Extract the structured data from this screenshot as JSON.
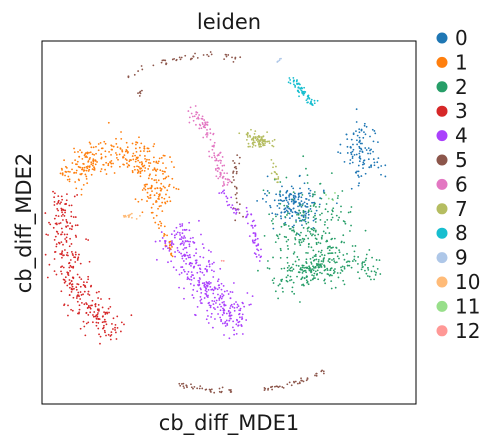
{
  "chart_data": {
    "type": "scatter",
    "title": "leiden",
    "xlabel": "cb_diff_MDE1",
    "ylabel": "cb_diff_MDE2",
    "xticks": [],
    "yticks": [],
    "grid": false,
    "legend_position": "right",
    "series": [
      {
        "name": "0",
        "color": "#1f77b4",
        "clusters": [
          {
            "cx": 0.4,
            "cy": 0.12,
            "sx": 0.08,
            "sy": 0.07,
            "n": 170,
            "angle": -0.2
          },
          {
            "cx": 0.82,
            "cy": 0.45,
            "sx": 0.06,
            "sy": 0.1,
            "n": 110,
            "angle": 0.1
          }
        ]
      },
      {
        "name": "1",
        "color": "#ff7f0e",
        "path": [
          [
            -1.0,
            0.28
          ],
          [
            -0.85,
            0.4
          ],
          [
            -0.62,
            0.46
          ],
          [
            -0.5,
            0.4
          ],
          [
            -0.47,
            0.26
          ],
          [
            -0.42,
            0.1
          ]
        ],
        "width": 0.055,
        "n": 360
      },
      {
        "name": "2",
        "color": "#279e68",
        "clusters": [
          {
            "cx": 0.55,
            "cy": -0.3,
            "sx": 0.13,
            "sy": 0.05,
            "n": 200,
            "angle": 0.25
          },
          {
            "cx": 0.5,
            "cy": -0.05,
            "sx": 0.13,
            "sy": 0.15,
            "n": 240,
            "angle": 0.0
          }
        ]
      },
      {
        "name": "3",
        "color": "#d62728",
        "path": [
          [
            -1.02,
            0.18
          ],
          [
            -1.03,
            -0.02
          ],
          [
            -1.0,
            -0.25
          ],
          [
            -0.95,
            -0.42
          ],
          [
            -0.82,
            -0.58
          ],
          [
            -0.7,
            -0.73
          ]
        ],
        "width": 0.05,
        "n": 320
      },
      {
        "name": "4",
        "color": "#aa40fc",
        "path": [
          [
            -0.35,
            -0.05
          ],
          [
            -0.25,
            -0.25
          ],
          [
            -0.12,
            -0.45
          ],
          [
            -0.02,
            -0.58
          ],
          [
            0.1,
            -0.62
          ]
        ],
        "width": 0.06,
        "n": 360
      },
      {
        "name": "5",
        "color": "#8c564b",
        "path": [
          [
            -0.62,
            0.93
          ],
          [
            -0.4,
            1.02
          ],
          [
            -0.12,
            1.07
          ],
          [
            0.1,
            1.03
          ]
        ],
        "width": 0.012,
        "n": 45
      },
      {
        "name": "6",
        "color": "#e377c2",
        "path": [
          [
            -0.23,
            0.74
          ],
          [
            -0.14,
            0.58
          ],
          [
            -0.07,
            0.4
          ],
          [
            -0.02,
            0.23
          ]
        ],
        "width": 0.02,
        "n": 110
      },
      {
        "name": "7",
        "color": "#b5bd61",
        "clusters": [
          {
            "cx": 0.18,
            "cy": 0.52,
            "sx": 0.045,
            "sy": 0.022,
            "n": 90,
            "angle": -0.3
          }
        ]
      },
      {
        "name": "8",
        "color": "#17becf",
        "path": [
          [
            0.38,
            0.92
          ],
          [
            0.44,
            0.84
          ],
          [
            0.52,
            0.74
          ]
        ],
        "width": 0.012,
        "n": 70
      },
      {
        "name": "9",
        "color": "#aec7e8",
        "clusters": [
          {
            "cx": 0.3,
            "cy": 1.03,
            "sx": 0.02,
            "sy": 0.01,
            "n": 5,
            "angle": 0
          }
        ]
      },
      {
        "name": "10",
        "color": "#ffbb78",
        "clusters": [
          {
            "cx": -0.62,
            "cy": 0.04,
            "sx": 0.025,
            "sy": 0.015,
            "n": 14,
            "angle": 0
          }
        ]
      },
      {
        "name": "11",
        "color": "#98df8a",
        "clusters": [
          {
            "cx": 0.62,
            "cy": 0.18,
            "sx": 0.02,
            "sy": 0.02,
            "n": 4,
            "angle": 0
          }
        ]
      },
      {
        "name": "12",
        "color": "#ff9896",
        "clusters": [
          {
            "cx": -0.05,
            "cy": -0.25,
            "sx": 0.01,
            "sy": 0.01,
            "n": 2,
            "angle": 0
          }
        ]
      }
    ],
    "extra_arcs": [
      {
        "series": "5",
        "path": [
          [
            -0.32,
            -1.02
          ],
          [
            -0.15,
            -1.06
          ],
          [
            0.02,
            -1.07
          ]
        ],
        "width": 0.008,
        "n": 35
      },
      {
        "series": "5",
        "path": [
          [
            0.18,
            -1.06
          ],
          [
            0.4,
            -1.02
          ],
          [
            0.6,
            -0.94
          ]
        ],
        "width": 0.008,
        "n": 40
      },
      {
        "series": "5",
        "path": [
          [
            0.05,
            0.45
          ],
          [
            0.03,
            0.25
          ],
          [
            0.07,
            0.02
          ]
        ],
        "width": 0.012,
        "n": 30
      },
      {
        "series": "5",
        "path": [
          [
            -0.54,
            0.84
          ],
          [
            -0.55,
            0.8
          ]
        ],
        "width": 0.006,
        "n": 6
      },
      {
        "series": "4",
        "path": [
          [
            0.1,
            0.1
          ],
          [
            0.15,
            -0.05
          ],
          [
            0.2,
            -0.25
          ]
        ],
        "width": 0.015,
        "n": 45
      },
      {
        "series": "4",
        "path": [
          [
            -0.05,
            0.2
          ],
          [
            0.05,
            0.05
          ]
        ],
        "width": 0.012,
        "n": 20
      },
      {
        "series": "7",
        "path": [
          [
            0.27,
            0.4
          ],
          [
            0.3,
            0.25
          ]
        ],
        "width": 0.01,
        "n": 15
      },
      {
        "series": "2",
        "path": [
          [
            0.8,
            -0.2
          ],
          [
            0.9,
            -0.35
          ]
        ],
        "width": 0.03,
        "n": 25
      },
      {
        "series": "1",
        "path": [
          [
            -0.45,
            0.05
          ],
          [
            -0.38,
            -0.1
          ],
          [
            -0.35,
            -0.22
          ]
        ],
        "width": 0.015,
        "n": 25
      }
    ],
    "xlim": [
      -1.15,
      1.15
    ],
    "ylim": [
      -1.15,
      1.15
    ]
  }
}
